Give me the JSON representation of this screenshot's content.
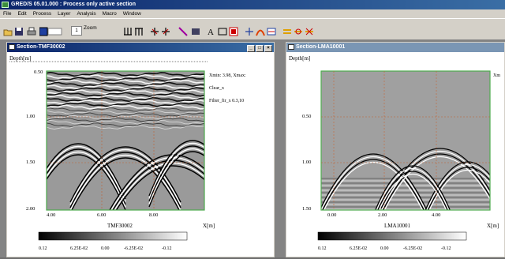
{
  "app": {
    "title": "GRED/S 05.01.000 : Process only active section"
  },
  "menu": [
    "File",
    "Edit",
    "Process",
    "Layer",
    "Analysis",
    "Macro",
    "Window"
  ],
  "toolbar": {
    "zoom_label": "Zoom",
    "zoom_value": "1"
  },
  "left": {
    "title": "Section-TMF30002",
    "depth_label": "Depth[m]",
    "y_ticks": [
      "0.50",
      "1.00",
      "1.50",
      "2.00"
    ],
    "x_ticks": [
      "4.00",
      "6.00",
      "8.00"
    ],
    "x_label": "TMF30002",
    "x_unit": "X[m]",
    "info": [
      "Xmin: 3.98, Xmax:",
      "Clear_x",
      "Filter_fir_x 0.3,10"
    ],
    "colorbar_ticks": [
      "0.12",
      "6.25E-02",
      "0.00",
      "-6.25E-02",
      "-0.12"
    ],
    "buttons": {
      "min": "_",
      "max": "□",
      "close": "×"
    }
  },
  "right": {
    "title": "Section-LMA10001",
    "depth_label": "Depth[m]",
    "y_ticks": [
      "0.50",
      "1.00",
      "1.50"
    ],
    "x_ticks": [
      "0.00",
      "2.00",
      "4.00"
    ],
    "x_label": "LMA10001",
    "x_unit": "X[m]",
    "info_truncated": "Xm",
    "colorbar_ticks": [
      "0.12",
      "6.25E-02",
      "0.00",
      "-6.25E-02",
      "-0.12"
    ]
  },
  "colors": {
    "active_title": "#0a246a",
    "inactive_title": "#7a96b4",
    "grid": "#c06030",
    "border_green": "#4caa4c"
  }
}
